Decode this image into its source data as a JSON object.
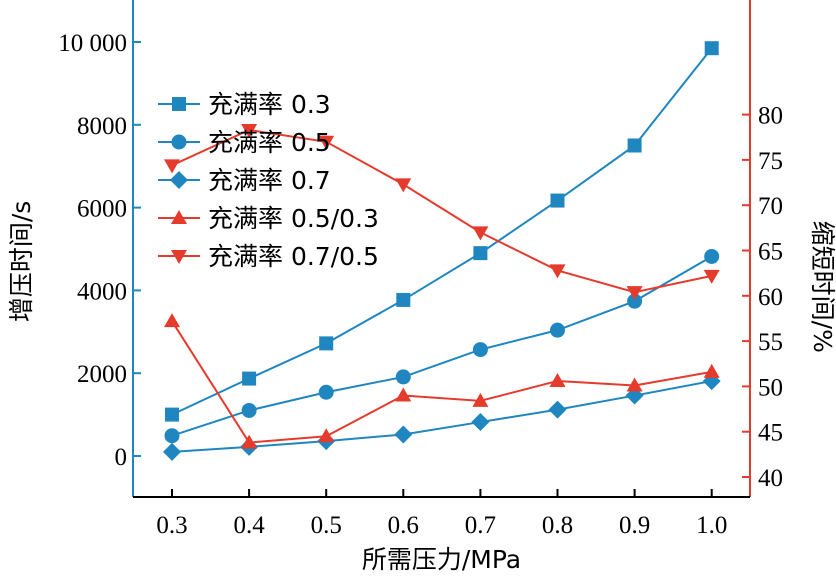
{
  "chart_data": {
    "type": "line",
    "title": "",
    "xlabel": "所需压力/MPa",
    "ylabel": "增压时间/s",
    "y2label": "缩短时间/%",
    "x": [
      0.3,
      0.4,
      0.5,
      0.6,
      0.7,
      0.8,
      0.9,
      1.0
    ],
    "x_tick_labels": [
      "0.3",
      "0.4",
      "0.5",
      "0.6",
      "0.7",
      "0.8",
      "0.9",
      "1.0"
    ],
    "xlim": [
      0.25,
      1.05
    ],
    "ylim": [
      -1000,
      10800
    ],
    "y_ticks": [
      0,
      2000,
      4000,
      6000,
      8000,
      10000
    ],
    "y_tick_labels": [
      "0",
      "2000",
      "4000",
      "6000",
      "8000",
      "10 000"
    ],
    "y2lim": [
      38,
      82
    ],
    "y2_ticks": [
      40,
      45,
      50,
      55,
      60,
      65,
      70,
      75,
      80
    ],
    "y2_tick_labels": [
      "40",
      "45",
      "50",
      "55",
      "60",
      "65",
      "70",
      "75",
      "80"
    ],
    "grid": false,
    "legend_position": "upper-left",
    "colors": {
      "blue": "#1f86c0",
      "red": "#e53b2c",
      "axis": "#000000"
    },
    "series": [
      {
        "name": "充满率 0.3",
        "axis": "left",
        "marker": "square",
        "color": "#1f86c0",
        "values": [
          1000,
          1870,
          2720,
          3770,
          4900,
          6170,
          7500,
          9850
        ]
      },
      {
        "name": "充满率 0.5",
        "axis": "left",
        "marker": "circle",
        "color": "#1f86c0",
        "values": [
          490,
          1100,
          1540,
          1910,
          2570,
          3040,
          3740,
          4820
        ]
      },
      {
        "name": "充满率 0.7",
        "axis": "left",
        "marker": "diamond",
        "color": "#1f86c0",
        "values": [
          100,
          220,
          360,
          520,
          820,
          1120,
          1460,
          1810
        ]
      },
      {
        "name": "充满率 0.5/0.3",
        "axis": "right",
        "marker": "triangle-up",
        "color": "#e53b2c",
        "values": [
          57.2,
          43.8,
          44.5,
          49.0,
          48.4,
          50.6,
          50.1,
          51.6
        ]
      },
      {
        "name": "充满率 0.7/0.5",
        "axis": "right",
        "marker": "triangle-down",
        "color": "#e53b2c",
        "values": [
          74.4,
          78.3,
          77.0,
          72.3,
          67.0,
          62.8,
          60.4,
          62.2
        ]
      }
    ]
  }
}
